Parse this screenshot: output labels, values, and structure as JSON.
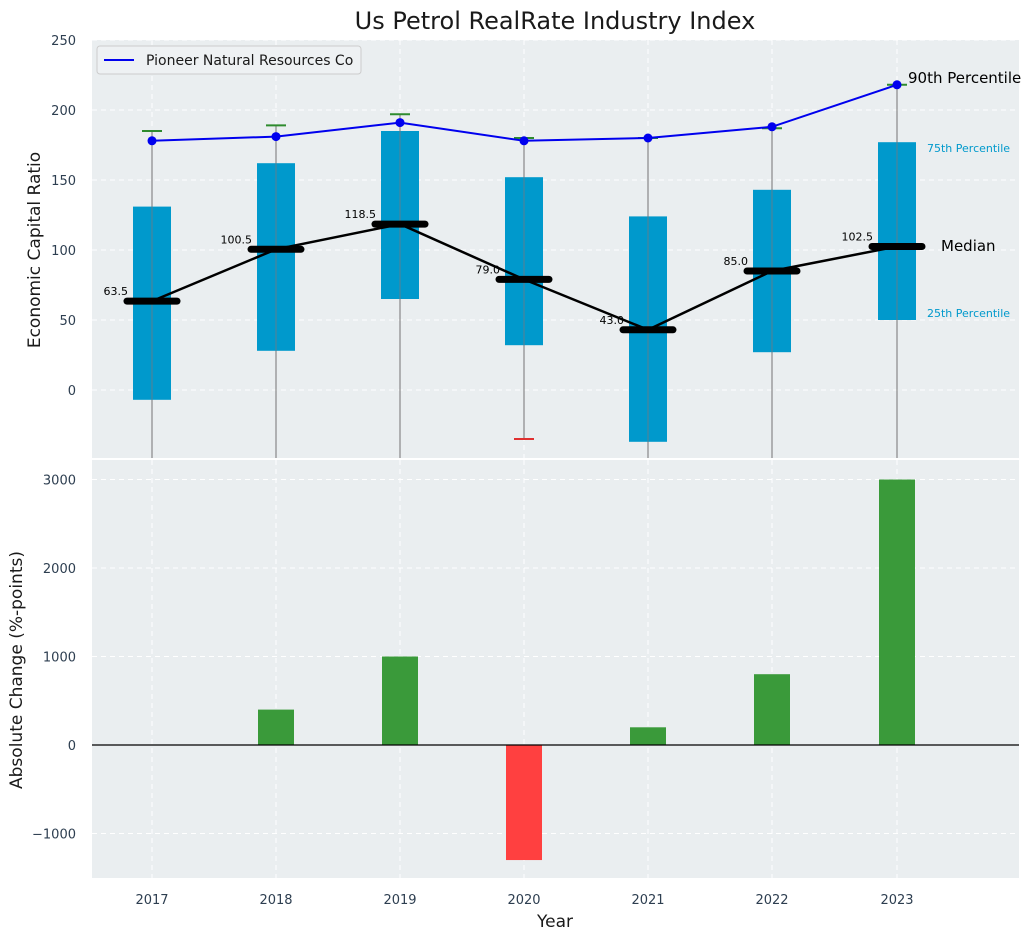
{
  "chart_data": [
    {
      "type": "box",
      "title": "Us Petrol RealRate Industry Index",
      "xlabel": "",
      "ylabel": "Economic Capital Ratio",
      "ylim": [
        -48,
        250
      ],
      "yticks": [
        0,
        50,
        100,
        150,
        200,
        250
      ],
      "categories": [
        "2017",
        "2018",
        "2019",
        "2020",
        "2021",
        "2022",
        "2023"
      ],
      "boxes": [
        {
          "year": "2017",
          "p10": -50,
          "p25": -7,
          "median": 63.5,
          "p75": 131,
          "p90": 185,
          "p90_color": "#2e8b2e"
        },
        {
          "year": "2018",
          "p10": -50,
          "p25": 28,
          "median": 100.5,
          "p75": 162,
          "p90": 189,
          "p90_color": "#2e8b2e"
        },
        {
          "year": "2019",
          "p10": -50,
          "p25": 65,
          "median": 118.5,
          "p75": 185,
          "p90": 197,
          "p90_color": "#2e8b2e"
        },
        {
          "year": "2020",
          "p10": -35,
          "p10_color": "#e03030",
          "p25": 32,
          "median": 79.0,
          "p75": 152,
          "p90": 180,
          "p90_color": "#2e8b2e"
        },
        {
          "year": "2021",
          "p10": -50,
          "p25": -37,
          "median": 43.0,
          "p75": 124,
          "p90": 180,
          "p90_color": "#2e8b2e"
        },
        {
          "year": "2022",
          "p10": -50,
          "p25": 27,
          "median": 85.0,
          "p75": 143,
          "p90": 187,
          "p90_color": "#2e8b2e"
        },
        {
          "year": "2023",
          "p10": -50,
          "p25": 50,
          "median": 102.5,
          "p75": 177,
          "p90": 218,
          "p90_color": "#2e8b2e"
        }
      ],
      "median_labels": [
        "63.5",
        "100.5",
        "118.5",
        "79.0",
        "43.0",
        "85.0",
        "102.5"
      ],
      "company_series": {
        "name": "Pioneer Natural Resources Co",
        "values": [
          178,
          181,
          191,
          178,
          180,
          188,
          218
        ],
        "color": "#0000ee"
      },
      "annotations": {
        "p90": "90th Percentile",
        "p75": "75th Percentile",
        "median": "Median",
        "p25": "25th Percentile"
      },
      "legend": {
        "position": "top-left",
        "entries": [
          "Pioneer Natural Resources Co"
        ]
      },
      "colors": {
        "box": "#0099cc",
        "median": "#000000",
        "pct_label": "#0099cc",
        "background": "#eaeef0"
      }
    },
    {
      "type": "bar",
      "xlabel": "Year",
      "ylabel": "Absolute Change (%-points)",
      "ylim": [
        -1500,
        3100
      ],
      "yticks": [
        -1000,
        0,
        1000,
        2000,
        3000
      ],
      "ytick_labels": [
        "−1000",
        "0",
        "1000",
        "2000",
        "3000"
      ],
      "categories": [
        "2017",
        "2018",
        "2019",
        "2020",
        "2021",
        "2022",
        "2023"
      ],
      "values": [
        0,
        400,
        1000,
        -1300,
        200,
        800,
        3000
      ],
      "colors": {
        "positive": "#3a9a3a",
        "negative": "#ff4040"
      }
    }
  ]
}
